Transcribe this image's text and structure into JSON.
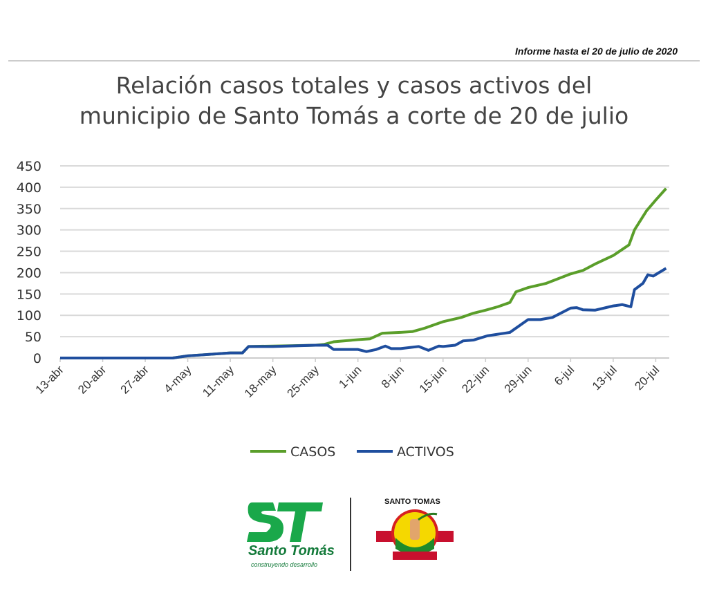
{
  "header": {
    "report_date": "Informe hasta el 20 de julio de 2020"
  },
  "chart_data": {
    "type": "line",
    "title": "Relación casos totales y casos activos del municipio de Santo Tomás a corte de 20 de julio",
    "title_lines": [
      "Relación casos totales y casos activos del",
      "municipio de Santo Tomás a corte de 20 de julio"
    ],
    "xlabel": "",
    "ylabel": "",
    "x_unit": "days since 13-abr",
    "xlim": [
      0,
      100
    ],
    "ylim": [
      0,
      450
    ],
    "yticks": [
      0,
      50,
      100,
      150,
      200,
      250,
      300,
      350,
      400,
      450
    ],
    "xticks": [
      {
        "day": 0,
        "label": "13-abr"
      },
      {
        "day": 7,
        "label": "20-abr"
      },
      {
        "day": 14,
        "label": "27-abr"
      },
      {
        "day": 21,
        "label": "4-may"
      },
      {
        "day": 28,
        "label": "11-may"
      },
      {
        "day": 35,
        "label": "18-may"
      },
      {
        "day": 42,
        "label": "25-may"
      },
      {
        "day": 49,
        "label": "1-jun"
      },
      {
        "day": 56,
        "label": "8-jun"
      },
      {
        "day": 63,
        "label": "15-jun"
      },
      {
        "day": 70,
        "label": "22-jun"
      },
      {
        "day": 77,
        "label": "29-jun"
      },
      {
        "day": 84,
        "label": "6-jul"
      },
      {
        "day": 91,
        "label": "13-jul"
      },
      {
        "day": 98,
        "label": "20-jul"
      }
    ],
    "grid": true,
    "legend": "bottom",
    "series": [
      {
        "name": "CASOS",
        "color": "#5a9e2a",
        "points": [
          [
            0,
            0
          ],
          [
            18.5,
            0
          ],
          [
            21,
            5
          ],
          [
            24,
            8
          ],
          [
            28,
            12
          ],
          [
            30,
            12
          ],
          [
            31,
            27
          ],
          [
            35,
            28
          ],
          [
            42,
            30
          ],
          [
            43.5,
            32
          ],
          [
            45,
            38
          ],
          [
            49,
            43
          ],
          [
            51,
            45
          ],
          [
            53,
            58
          ],
          [
            56,
            60
          ],
          [
            58,
            62
          ],
          [
            60,
            70
          ],
          [
            63,
            85
          ],
          [
            66,
            95
          ],
          [
            68,
            105
          ],
          [
            70,
            112
          ],
          [
            72,
            120
          ],
          [
            74,
            130
          ],
          [
            75,
            155
          ],
          [
            77,
            165
          ],
          [
            80,
            175
          ],
          [
            84,
            197
          ],
          [
            86,
            205
          ],
          [
            88,
            220
          ],
          [
            91,
            240
          ],
          [
            93.6,
            265
          ],
          [
            94.5,
            300
          ],
          [
            96.5,
            345
          ],
          [
            98,
            370
          ],
          [
            99.7,
            397
          ]
        ]
      },
      {
        "name": "ACTIVOS",
        "color": "#1f4e9e",
        "points": [
          [
            0,
            0
          ],
          [
            18.5,
            0
          ],
          [
            21,
            5
          ],
          [
            24,
            8
          ],
          [
            28,
            12
          ],
          [
            30,
            12
          ],
          [
            31,
            27
          ],
          [
            35,
            27
          ],
          [
            42,
            30
          ],
          [
            44,
            30
          ],
          [
            45,
            20
          ],
          [
            49,
            20
          ],
          [
            50.4,
            15
          ],
          [
            52,
            20
          ],
          [
            53.5,
            28
          ],
          [
            54.5,
            22
          ],
          [
            56,
            22
          ],
          [
            59,
            27
          ],
          [
            60.6,
            18
          ],
          [
            62.3,
            28
          ],
          [
            63,
            27
          ],
          [
            65,
            30
          ],
          [
            66.3,
            40
          ],
          [
            68,
            42
          ],
          [
            70.3,
            52
          ],
          [
            74,
            60
          ],
          [
            77,
            90
          ],
          [
            79,
            90
          ],
          [
            81,
            95
          ],
          [
            84,
            117
          ],
          [
            85,
            118
          ],
          [
            86,
            113
          ],
          [
            88,
            112
          ],
          [
            91,
            122
          ],
          [
            92.5,
            125
          ],
          [
            93.9,
            120
          ],
          [
            94.5,
            160
          ],
          [
            95.9,
            175
          ],
          [
            96.7,
            195
          ],
          [
            97.6,
            192
          ],
          [
            99.7,
            210
          ]
        ]
      }
    ]
  },
  "footer": {
    "logo1_text": "Santo Tomás",
    "logo1_tagline": "construyendo desarrollo",
    "logo1_mark": "ST",
    "logo2_text": "SANTO TOMAS"
  }
}
